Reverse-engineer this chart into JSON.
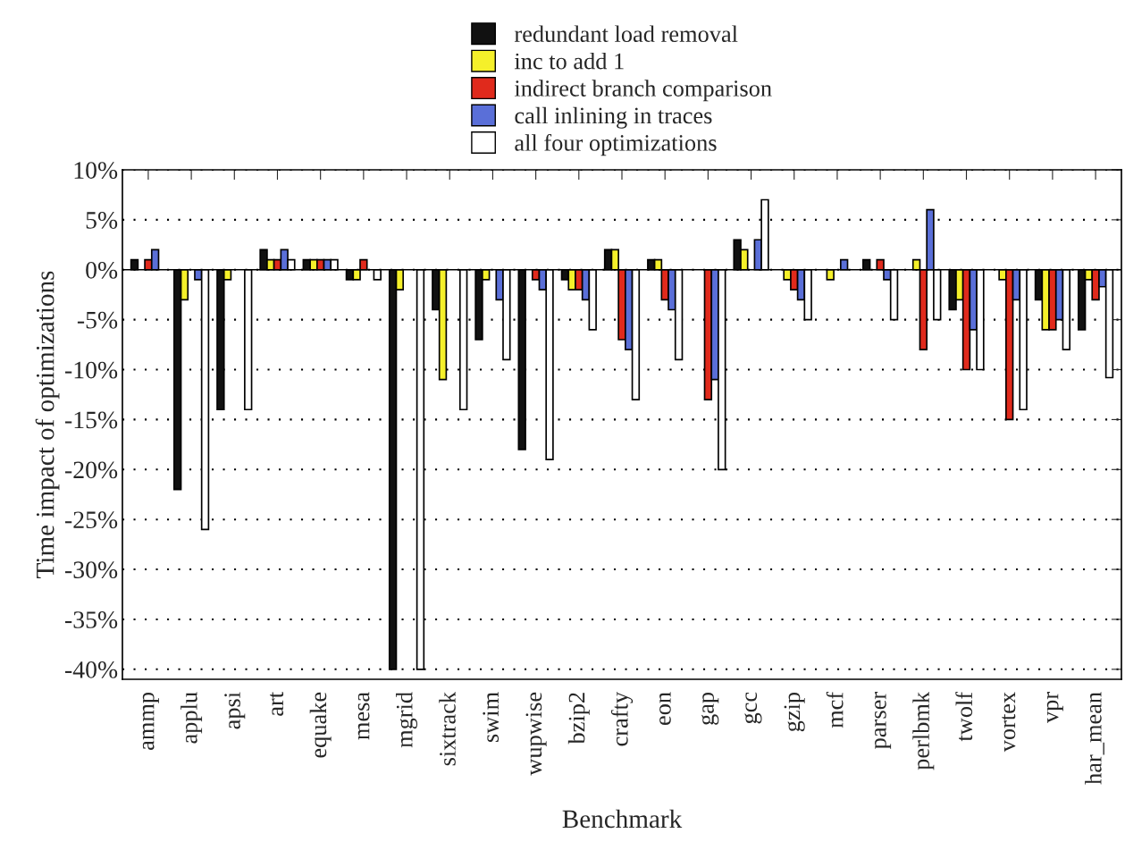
{
  "chart_data": {
    "type": "bar",
    "xlabel": "Benchmark",
    "ylabel": "Time impact of optimizations",
    "categories": [
      "ammp",
      "applu",
      "apsi",
      "art",
      "equake",
      "mesa",
      "mgrid",
      "sixtrack",
      "swim",
      "wupwise",
      "bzip2",
      "crafty",
      "eon",
      "gap",
      "gcc",
      "gzip",
      "mcf",
      "parser",
      "perlbmk",
      "twolf",
      "vortex",
      "vpr",
      "har_mean"
    ],
    "series": [
      {
        "name": "redundant load removal",
        "color": "#111111",
        "values": [
          1,
          -22,
          -14,
          2,
          1,
          -1,
          -40,
          -4,
          -7,
          -18,
          -1,
          2,
          1,
          null,
          3,
          null,
          null,
          1,
          null,
          -4,
          null,
          -3,
          -6
        ]
      },
      {
        "name": "inc to add 1",
        "color": "#f5f02a",
        "values": [
          null,
          -3,
          -1,
          1,
          1,
          -1,
          -2,
          -11,
          -1,
          null,
          -2,
          2,
          1,
          null,
          2,
          -1,
          -1,
          null,
          1,
          -3,
          -1,
          -6,
          -1
        ]
      },
      {
        "name": "indirect branch comparison",
        "color": "#e02a1c",
        "values": [
          1,
          null,
          null,
          1,
          1,
          1,
          null,
          null,
          null,
          -1,
          -2,
          -7,
          -3,
          -13,
          null,
          -2,
          null,
          1,
          -8,
          -10,
          -15,
          -6,
          -3
        ]
      },
      {
        "name": "call inlining in traces",
        "color": "#5a6fd8",
        "values": [
          2,
          -1,
          null,
          2,
          1,
          null,
          null,
          null,
          -3,
          -2,
          -3,
          -8,
          -4,
          -11,
          3,
          -3,
          1,
          -1,
          6,
          -6,
          -3,
          -5,
          -1.7
        ]
      },
      {
        "name": "all four optimizations",
        "color": "#ffffff",
        "values": [
          null,
          -26,
          -14,
          1,
          1,
          -1,
          -40,
          -14,
          -9,
          -19,
          -6,
          -13,
          -9,
          -20,
          7,
          -5,
          null,
          -5,
          -5,
          -10,
          -14,
          -8,
          -10.8
        ]
      }
    ],
    "ylim": [
      -41,
      10
    ],
    "yticks": [
      {
        "value": 10,
        "label": "10%"
      },
      {
        "value": 5,
        "label": "5%"
      },
      {
        "value": 0,
        "label": "0%"
      },
      {
        "value": -5,
        "label": "-5%"
      },
      {
        "value": -10,
        "label": "-10%"
      },
      {
        "value": -15,
        "label": "-15%"
      },
      {
        "value": -20,
        "label": "-20%"
      },
      {
        "value": -25,
        "label": "-25%"
      },
      {
        "value": -30,
        "label": "-30%"
      },
      {
        "value": -35,
        "label": "-35%"
      },
      {
        "value": -40,
        "label": "-40%"
      }
    ],
    "grid": "y",
    "legend": "top"
  }
}
